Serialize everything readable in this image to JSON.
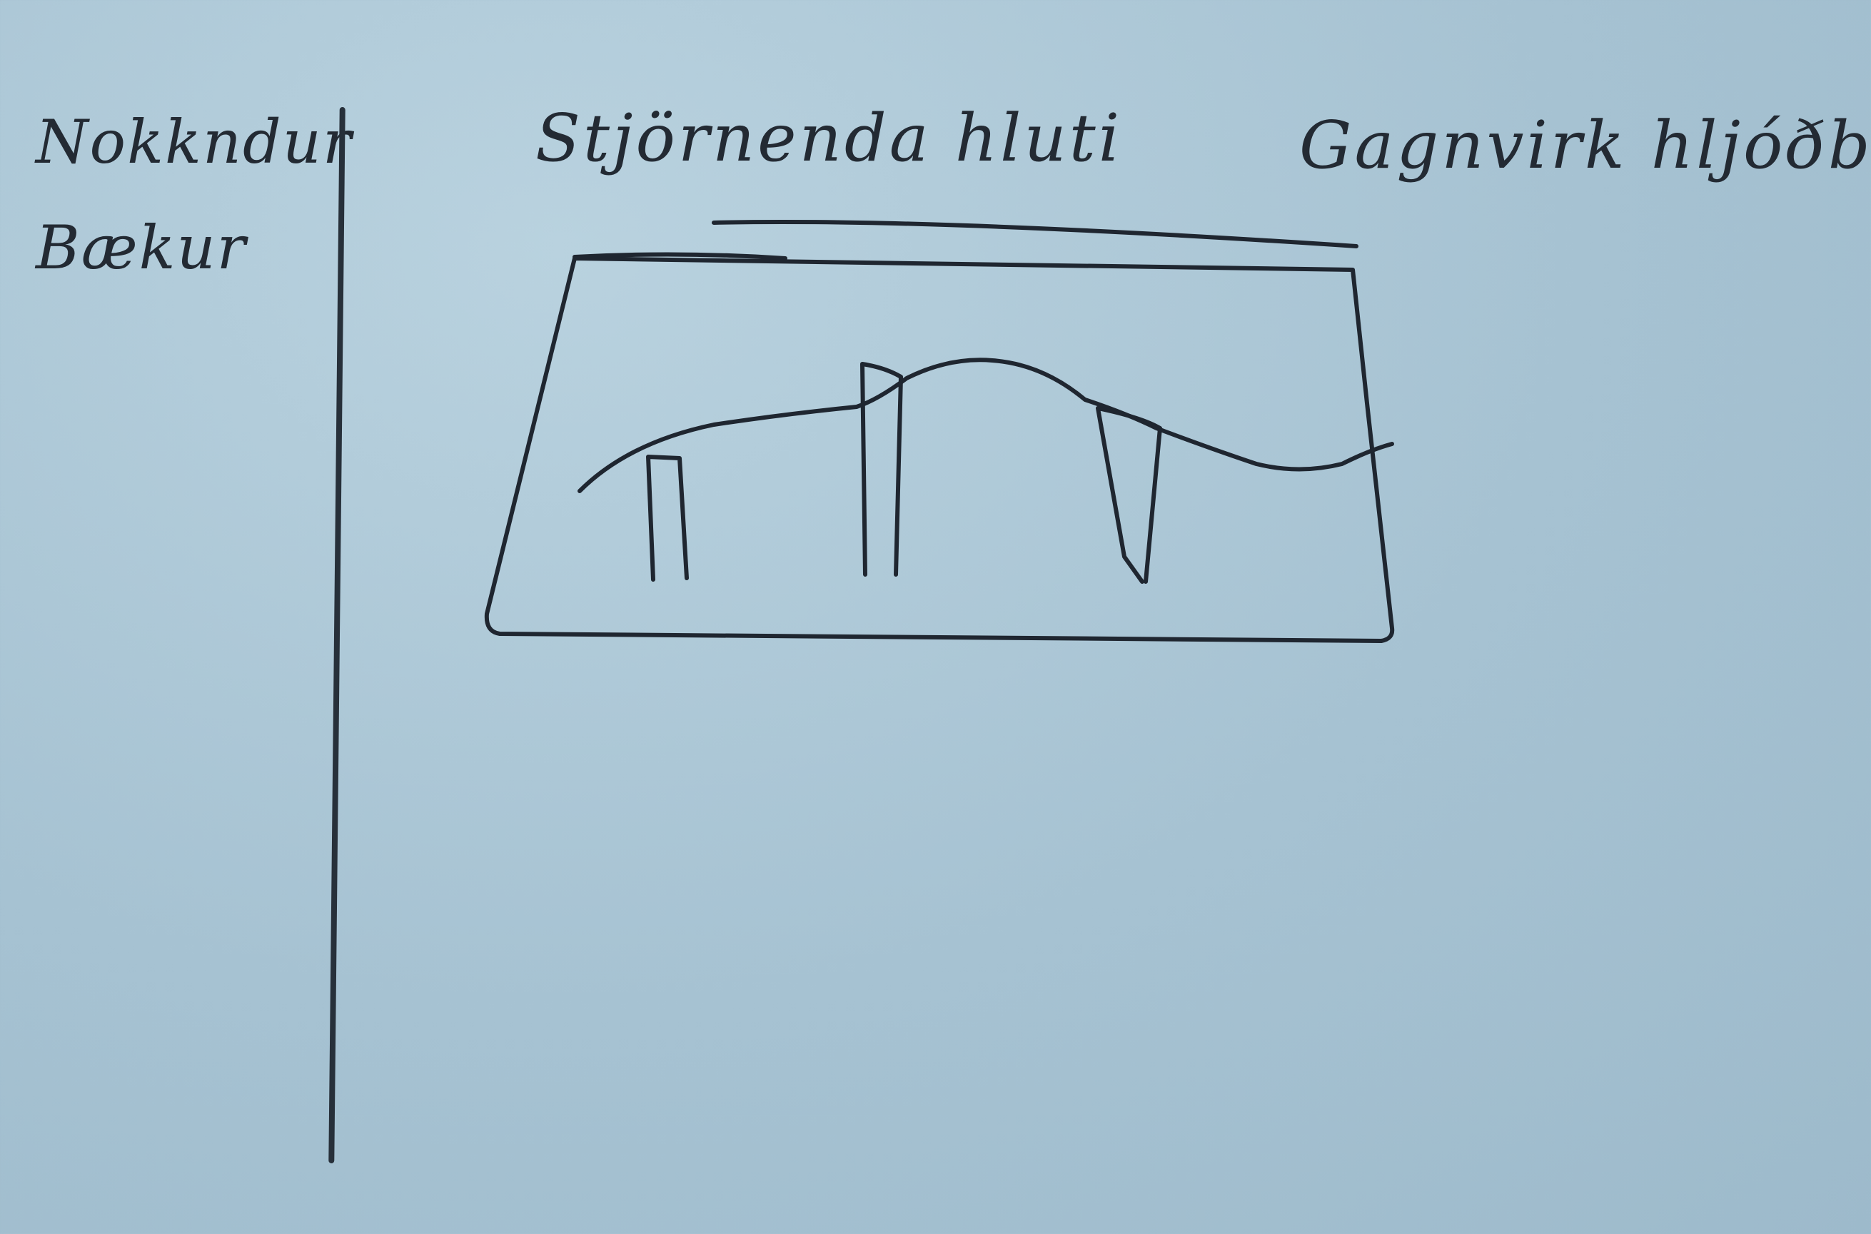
{
  "sidebar": {
    "items": [
      {
        "label": "Nokkndur"
      },
      {
        "label": "Bækur"
      }
    ]
  },
  "tabs": [
    {
      "label": "Stjörnenda hluti"
    },
    {
      "label": "Gagnvirk hljóðbók"
    }
  ],
  "hero": {
    "icon": "landscape-sketch-icon"
  },
  "colors": {
    "paper": "#a9c4d3",
    "ink": "#232a33"
  }
}
